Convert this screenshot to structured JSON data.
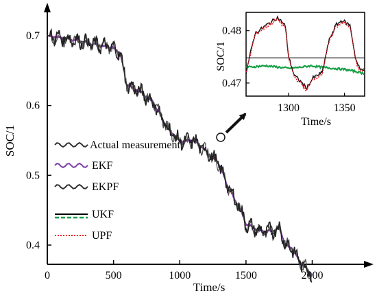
{
  "chart_data": [
    {
      "type": "line",
      "title": "",
      "xlabel": "Time/s",
      "ylabel": "SOC/1",
      "xlim": [
        0,
        2300
      ],
      "ylim": [
        0.35,
        0.72
      ],
      "x_ticks": [
        "0",
        "500",
        "1000",
        "1500",
        "2000"
      ],
      "y_ticks": [
        "0.4",
        "0.5",
        "0.6",
        "0.7"
      ],
      "legend_position": "lower-left",
      "legend": [
        "Actual measurement",
        "EKF",
        "EKPF",
        "UKF",
        "UPF"
      ],
      "series": [
        {
          "name": "Actual measurement",
          "color": "#222222",
          "style": "noisy-solid",
          "x": [
            0,
            100,
            200,
            300,
            400,
            500,
            550,
            600,
            700,
            800,
            900,
            1000,
            1100,
            1200,
            1300,
            1350,
            1400,
            1450,
            1500,
            1600,
            1700,
            1750,
            1800,
            1850,
            1900,
            2000
          ],
          "y": [
            0.7,
            0.697,
            0.694,
            0.69,
            0.686,
            0.682,
            0.675,
            0.63,
            0.62,
            0.605,
            0.57,
            0.548,
            0.55,
            0.535,
            0.515,
            0.49,
            0.47,
            0.455,
            0.43,
            0.42,
            0.42,
            0.425,
            0.4,
            0.395,
            0.378,
            0.357
          ]
        },
        {
          "name": "EKF",
          "color": "#7b3fa8",
          "style": "smooth",
          "x": [
            0,
            100,
            200,
            300,
            400,
            500,
            550,
            600,
            700,
            800,
            900,
            1000,
            1100,
            1200,
            1300,
            1350,
            1400,
            1450,
            1500,
            1600,
            1700,
            1750,
            1800,
            1850,
            1900,
            2000
          ],
          "y": [
            0.7,
            0.697,
            0.694,
            0.69,
            0.686,
            0.682,
            0.675,
            0.63,
            0.62,
            0.605,
            0.57,
            0.548,
            0.55,
            0.535,
            0.515,
            0.49,
            0.47,
            0.455,
            0.43,
            0.42,
            0.42,
            0.425,
            0.4,
            0.395,
            0.378,
            0.357
          ]
        },
        {
          "name": "EKPF",
          "color": "#555555",
          "style": "noisy-solid",
          "x": [
            0,
            100,
            200,
            300,
            400,
            500,
            550,
            600,
            700,
            800,
            900,
            1000,
            1100,
            1200,
            1300,
            1350,
            1400,
            1450,
            1500,
            1600,
            1700,
            1750,
            1800,
            1850,
            1900,
            2000
          ],
          "y": [
            0.7,
            0.697,
            0.694,
            0.69,
            0.686,
            0.682,
            0.675,
            0.63,
            0.62,
            0.605,
            0.57,
            0.548,
            0.55,
            0.535,
            0.515,
            0.49,
            0.47,
            0.455,
            0.43,
            0.42,
            0.42,
            0.425,
            0.4,
            0.395,
            0.378,
            0.357
          ]
        },
        {
          "name": "UKF",
          "color": "#000000",
          "style": "solid",
          "x": [
            0,
            100,
            200,
            300,
            400,
            500,
            550,
            600,
            700,
            800,
            900,
            1000,
            1100,
            1200,
            1300,
            1350,
            1400,
            1450,
            1500,
            1600,
            1700,
            1750,
            1800,
            1850,
            1900,
            2000
          ],
          "y": [
            0.7,
            0.697,
            0.694,
            0.69,
            0.686,
            0.682,
            0.675,
            0.63,
            0.62,
            0.605,
            0.57,
            0.548,
            0.55,
            0.535,
            0.515,
            0.49,
            0.47,
            0.455,
            0.43,
            0.42,
            0.42,
            0.425,
            0.4,
            0.395,
            0.378,
            0.357
          ]
        },
        {
          "name": "UPF",
          "color": "#e8141e",
          "style": "dotted",
          "x": [
            0,
            100,
            200,
            300,
            400,
            500,
            550,
            600,
            700,
            800,
            900,
            1000,
            1100,
            1200,
            1300,
            1350,
            1400,
            1450,
            1500,
            1600,
            1700,
            1750,
            1800,
            1850,
            1900,
            2000
          ],
          "y": [
            0.7,
            0.697,
            0.694,
            0.69,
            0.686,
            0.682,
            0.675,
            0.63,
            0.62,
            0.605,
            0.57,
            0.548,
            0.55,
            0.535,
            0.515,
            0.49,
            0.47,
            0.455,
            0.43,
            0.42,
            0.42,
            0.425,
            0.4,
            0.395,
            0.378,
            0.357
          ]
        }
      ]
    },
    {
      "type": "line",
      "title": "",
      "xlabel": "Time/s",
      "ylabel": "SOC/1",
      "xlim": [
        1262,
        1368
      ],
      "ylim": [
        0.4675,
        0.4835
      ],
      "x_ticks": [
        "1300",
        "1350"
      ],
      "y_ticks": [
        "0.47",
        "0.48"
      ],
      "series": [
        {
          "name": "Actual measurement",
          "color": "#111111",
          "x": [
            1262,
            1270,
            1280,
            1290,
            1297,
            1300,
            1305,
            1312,
            1316,
            1322,
            1330,
            1336,
            1342,
            1348,
            1355,
            1360,
            1364,
            1368
          ],
          "y": [
            0.472,
            0.4795,
            0.481,
            0.4825,
            0.481,
            0.475,
            0.4715,
            0.47,
            0.469,
            0.471,
            0.472,
            0.478,
            0.481,
            0.482,
            0.481,
            0.4745,
            0.4725,
            0.4728
          ]
        },
        {
          "name": "UPF",
          "color": "#e8141e",
          "x": [
            1262,
            1270,
            1280,
            1290,
            1297,
            1300,
            1305,
            1312,
            1316,
            1322,
            1330,
            1336,
            1342,
            1348,
            1355,
            1360,
            1364,
            1368
          ],
          "y": [
            0.4718,
            0.4792,
            0.4808,
            0.4822,
            0.4807,
            0.4748,
            0.4712,
            0.4698,
            0.4686,
            0.4708,
            0.4718,
            0.4777,
            0.4807,
            0.4817,
            0.4807,
            0.4742,
            0.4722,
            0.4725
          ]
        },
        {
          "name": "UKF",
          "color": "#000000",
          "x": [
            1262,
            1368
          ],
          "y": [
            0.4748,
            0.4748
          ]
        },
        {
          "name": "EKF",
          "color": "#18a048",
          "x": [
            1262,
            1280,
            1300,
            1310,
            1320,
            1330,
            1340,
            1350,
            1360,
            1368
          ],
          "y": [
            0.473,
            0.4733,
            0.4728,
            0.473,
            0.4733,
            0.473,
            0.4728,
            0.4726,
            0.4722,
            0.4718
          ]
        }
      ]
    }
  ]
}
